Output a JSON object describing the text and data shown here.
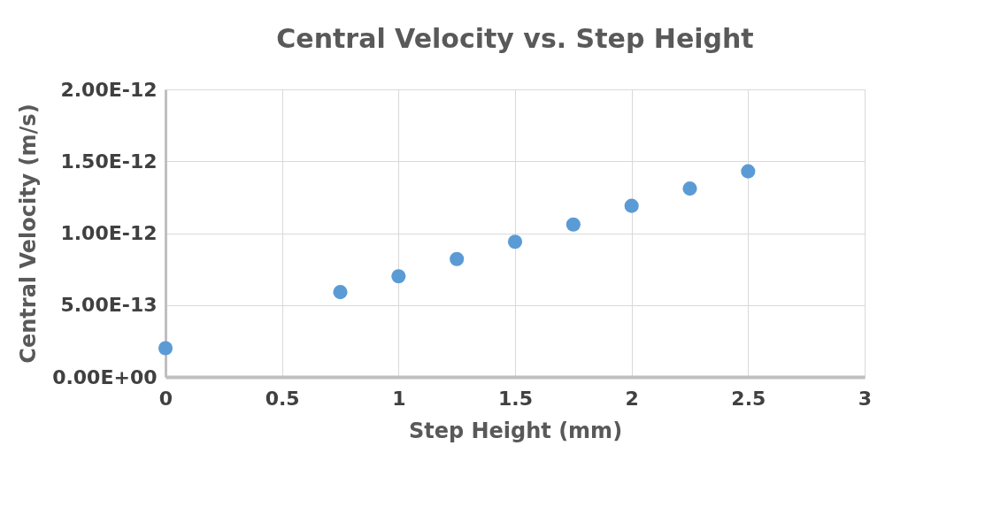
{
  "chart_data": {
    "type": "scatter",
    "title": "Central Velocity vs. Step Height",
    "xlabel": "Step Height (mm)",
    "ylabel": "Central Velocity (m/s)",
    "x": [
      0,
      0.75,
      1,
      1.25,
      1.5,
      1.75,
      2,
      2.25,
      2.5
    ],
    "series": [
      {
        "color": "#5b9bd5",
        "values": [
          2e-13,
          5.9e-13,
          7e-13,
          8.2e-13,
          9.4e-13,
          1.06e-12,
          1.19e-12,
          1.31e-12,
          1.43e-12
        ]
      }
    ],
    "xlim": [
      0,
      3
    ],
    "xticks": [
      0,
      0.5,
      1,
      1.5,
      2,
      2.5,
      3
    ],
    "ylim": [
      0,
      2e-12
    ],
    "yticks": [
      {
        "value": 0,
        "label": "0.00E+00"
      },
      {
        "value": 5e-13,
        "label": "5.00E-13"
      },
      {
        "value": 1e-12,
        "label": "1.00E-12"
      },
      {
        "value": 1.5e-12,
        "label": "1.50E-12"
      },
      {
        "value": 2e-12,
        "label": "2.00E-12"
      }
    ],
    "grid": true,
    "marker": "circle",
    "legend": false
  }
}
